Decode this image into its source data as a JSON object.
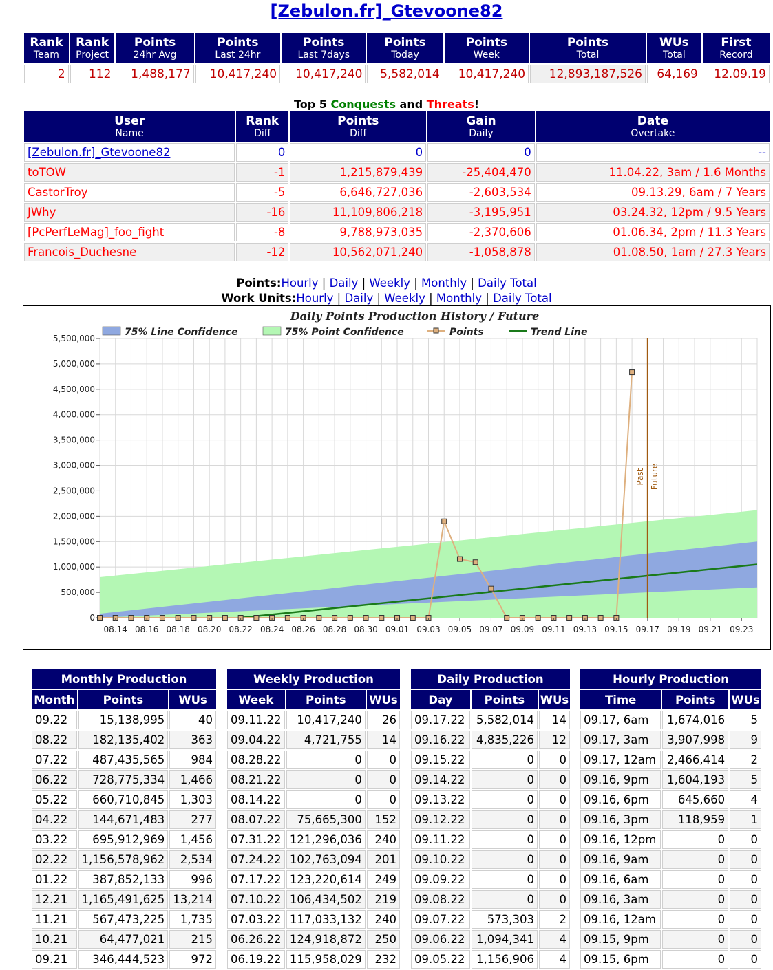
{
  "title": "[Zebulon.fr]_Gtevoone82",
  "stats": {
    "headers": [
      {
        "main": "Rank",
        "sub": "Team"
      },
      {
        "main": "Rank",
        "sub": "Project"
      },
      {
        "main": "Points",
        "sub": "24hr Avg"
      },
      {
        "main": "Points",
        "sub": "Last 24hr"
      },
      {
        "main": "Points",
        "sub": "Last 7days"
      },
      {
        "main": "Points",
        "sub": "Today"
      },
      {
        "main": "Points",
        "sub": "Week"
      },
      {
        "main": "Points",
        "sub": "Total"
      },
      {
        "main": "WUs",
        "sub": "Total"
      },
      {
        "main": "First",
        "sub": "Record"
      }
    ],
    "values": [
      "2",
      "112",
      "1,488,177",
      "10,417,240",
      "10,417,240",
      "5,582,014",
      "10,417,240",
      "12,893,187,526",
      "64,169",
      "12.09.19"
    ]
  },
  "conquests": {
    "title_pre": "Top 5 ",
    "title_conquests": "Conquests",
    "title_mid": " and ",
    "title_threats": "Threats",
    "title_post": "!",
    "headers": [
      {
        "main": "User",
        "sub": "Name"
      },
      {
        "main": "Rank",
        "sub": "Diff"
      },
      {
        "main": "Points",
        "sub": "Diff"
      },
      {
        "main": "Gain",
        "sub": "Daily"
      },
      {
        "main": "Date",
        "sub": "Overtake"
      }
    ],
    "rows": [
      {
        "name": "[Zebulon.fr]_Gtevoone82",
        "rank": "0",
        "points": "0",
        "gain": "0",
        "date": "--"
      },
      {
        "name": "toTOW",
        "rank": "-1",
        "points": "1,215,879,439",
        "gain": "-25,404,470",
        "date": "11.04.22, 3am / 1.6 Months"
      },
      {
        "name": "CastorTroy",
        "rank": "-5",
        "points": "6,646,727,036",
        "gain": "-2,603,534",
        "date": "09.13.29, 6am / 7 Years"
      },
      {
        "name": "JWhy",
        "rank": "-16",
        "points": "11,109,806,218",
        "gain": "-3,195,951",
        "date": "03.24.32, 12pm / 9.5 Years"
      },
      {
        "name": "[PcPerfLeMag]_foo_fight",
        "rank": "-8",
        "points": "9,788,973,035",
        "gain": "-2,370,606",
        "date": "01.06.34, 2pm / 11.3 Years"
      },
      {
        "name": "Francois_Duchesne",
        "rank": "-12",
        "points": "10,562,071,240",
        "gain": "-1,058,878",
        "date": "01.08.50, 1am / 27.3 Years"
      }
    ]
  },
  "links": {
    "points_label": "Points:",
    "wu_label": "Work Units:",
    "items": [
      "Hourly",
      "Daily",
      "Weekly",
      "Monthly",
      "Daily Total"
    ],
    "sep": " | "
  },
  "chart_data": {
    "type": "line",
    "title": "Daily Points Production History / Future",
    "legend": [
      "75% Line Confidence",
      "75% Point Confidence",
      "Points",
      "Trend Line"
    ],
    "legend_position": "top",
    "x_ticks": [
      "08.14",
      "08.16",
      "08.18",
      "08.20",
      "08.22",
      "08.24",
      "08.26",
      "08.28",
      "08.30",
      "09.01",
      "09.03",
      "09.05",
      "09.07",
      "09.09",
      "09.11",
      "09.13",
      "09.15",
      "09.17",
      "09.19",
      "09.21",
      "09.23"
    ],
    "y_ticks": [
      "0",
      "500,000",
      "1,000,000",
      "1,500,000",
      "2,000,000",
      "2,500,000",
      "3,000,000",
      "3,500,000",
      "4,000,000",
      "4,500,000",
      "5,000,000",
      "5,500,000"
    ],
    "ylim": [
      0,
      5500000
    ],
    "x_start": "08.13",
    "x_end": "09.24",
    "points": {
      "x": [
        "08.13",
        "08.14",
        "08.15",
        "08.16",
        "08.17",
        "08.18",
        "08.19",
        "08.20",
        "08.21",
        "08.22",
        "08.23",
        "08.24",
        "08.25",
        "08.26",
        "08.27",
        "08.28",
        "08.29",
        "08.30",
        "08.31",
        "09.01",
        "09.02",
        "09.03",
        "09.04",
        "09.05",
        "09.06",
        "09.07",
        "09.08",
        "09.09",
        "09.10",
        "09.11",
        "09.12",
        "09.13",
        "09.14",
        "09.15",
        "09.16"
      ],
      "y": [
        0,
        0,
        0,
        0,
        0,
        0,
        0,
        0,
        0,
        0,
        0,
        0,
        0,
        0,
        0,
        0,
        0,
        0,
        0,
        0,
        0,
        0,
        1900000,
        1156906,
        1094341,
        573303,
        0,
        0,
        0,
        0,
        0,
        0,
        0,
        0,
        4835226
      ]
    },
    "trend_line": {
      "x": [
        "08.22",
        "09.24"
      ],
      "y": [
        0,
        1050000
      ]
    },
    "line_confidence_band": {
      "x": [
        "08.13",
        "09.24"
      ],
      "lower": [
        0,
        600000
      ],
      "upper": [
        80000,
        1500000
      ]
    },
    "point_confidence_band": {
      "x": [
        "08.13",
        "09.24"
      ],
      "lower": [
        0,
        0
      ],
      "upper": [
        800000,
        2120000
      ]
    },
    "divider": {
      "x": "09.17",
      "past_label": "Past",
      "future_label": "Future"
    },
    "colors": {
      "line_conf": "#8fa8e0",
      "point_conf": "#b4f7b4",
      "points": "#deb07f",
      "trend": "#1a7a1a",
      "divider": "#a05a10"
    }
  },
  "monthly": {
    "title": "Monthly Production",
    "headers": [
      "Month",
      "Points",
      "WUs"
    ],
    "rows": [
      [
        "09.22",
        "15,138,995",
        "40"
      ],
      [
        "08.22",
        "182,135,402",
        "363"
      ],
      [
        "07.22",
        "487,435,565",
        "984"
      ],
      [
        "06.22",
        "728,775,334",
        "1,466"
      ],
      [
        "05.22",
        "660,710,845",
        "1,303"
      ],
      [
        "04.22",
        "144,671,483",
        "277"
      ],
      [
        "03.22",
        "695,912,969",
        "1,456"
      ],
      [
        "02.22",
        "1,156,578,962",
        "2,534"
      ],
      [
        "01.22",
        "387,852,133",
        "996"
      ],
      [
        "12.21",
        "1,165,491,625",
        "13,214"
      ],
      [
        "11.21",
        "567,473,225",
        "1,735"
      ],
      [
        "10.21",
        "64,477,021",
        "215"
      ],
      [
        "09.21",
        "346,444,523",
        "972"
      ]
    ]
  },
  "weekly": {
    "title": "Weekly Production",
    "headers": [
      "Week",
      "Points",
      "WUs"
    ],
    "rows": [
      [
        "09.11.22",
        "10,417,240",
        "26"
      ],
      [
        "09.04.22",
        "4,721,755",
        "14"
      ],
      [
        "08.28.22",
        "0",
        "0"
      ],
      [
        "08.21.22",
        "0",
        "0"
      ],
      [
        "08.14.22",
        "0",
        "0"
      ],
      [
        "08.07.22",
        "75,665,300",
        "152"
      ],
      [
        "07.31.22",
        "121,296,036",
        "240"
      ],
      [
        "07.24.22",
        "102,763,094",
        "201"
      ],
      [
        "07.17.22",
        "123,220,614",
        "249"
      ],
      [
        "07.10.22",
        "106,434,502",
        "219"
      ],
      [
        "07.03.22",
        "117,033,132",
        "240"
      ],
      [
        "06.26.22",
        "124,918,872",
        "250"
      ],
      [
        "06.19.22",
        "115,958,029",
        "232"
      ]
    ]
  },
  "daily": {
    "title": "Daily Production",
    "headers": [
      "Day",
      "Points",
      "WUs"
    ],
    "rows": [
      [
        "09.17.22",
        "5,582,014",
        "14"
      ],
      [
        "09.16.22",
        "4,835,226",
        "12"
      ],
      [
        "09.15.22",
        "0",
        "0"
      ],
      [
        "09.14.22",
        "0",
        "0"
      ],
      [
        "09.13.22",
        "0",
        "0"
      ],
      [
        "09.12.22",
        "0",
        "0"
      ],
      [
        "09.11.22",
        "0",
        "0"
      ],
      [
        "09.10.22",
        "0",
        "0"
      ],
      [
        "09.09.22",
        "0",
        "0"
      ],
      [
        "09.08.22",
        "0",
        "0"
      ],
      [
        "09.07.22",
        "573,303",
        "2"
      ],
      [
        "09.06.22",
        "1,094,341",
        "4"
      ],
      [
        "09.05.22",
        "1,156,906",
        "4"
      ]
    ]
  },
  "hourly": {
    "title": "Hourly Production",
    "headers": [
      "Time",
      "Points",
      "WUs"
    ],
    "rows": [
      [
        "09.17, 6am",
        "1,674,016",
        "5"
      ],
      [
        "09.17, 3am",
        "3,907,998",
        "9"
      ],
      [
        "09.17, 12am",
        "2,466,414",
        "2"
      ],
      [
        "09.16, 9pm",
        "1,604,193",
        "5"
      ],
      [
        "09.16, 6pm",
        "645,660",
        "4"
      ],
      [
        "09.16, 3pm",
        "118,959",
        "1"
      ],
      [
        "09.16, 12pm",
        "0",
        "0"
      ],
      [
        "09.16, 9am",
        "0",
        "0"
      ],
      [
        "09.16, 6am",
        "0",
        "0"
      ],
      [
        "09.16, 3am",
        "0",
        "0"
      ],
      [
        "09.16, 12am",
        "0",
        "0"
      ],
      [
        "09.15, 9pm",
        "0",
        "0"
      ],
      [
        "09.15, 6pm",
        "0",
        "0"
      ]
    ]
  }
}
